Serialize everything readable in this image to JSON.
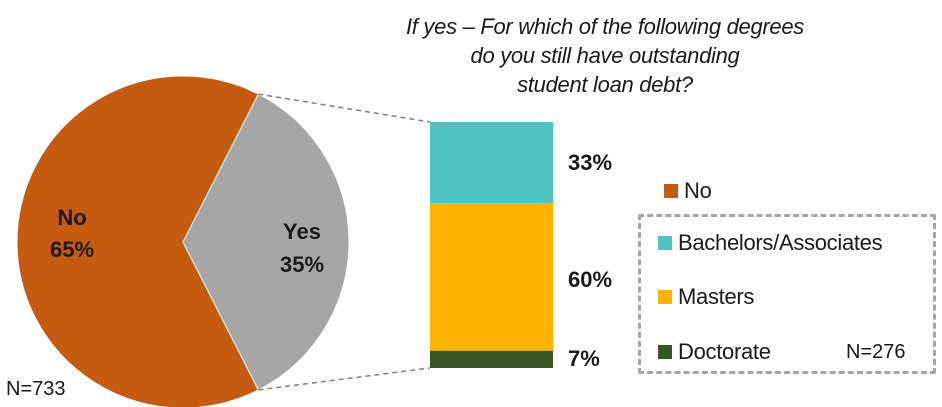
{
  "chart_data": [
    {
      "type": "pie",
      "labels": [
        "No",
        "Yes"
      ],
      "values": [
        65,
        35
      ],
      "display": [
        "65%",
        "35%"
      ],
      "colors": [
        "#c55a11",
        "#a6a6a6"
      ],
      "n": "N=733"
    },
    {
      "type": "bar",
      "stacked": true,
      "title_lines": [
        "If yes – For which of the following degrees",
        "do you still have outstanding",
        "student loan debt?"
      ],
      "series": [
        {
          "name": "Bachelors/Associates",
          "value": 33,
          "display": "33%",
          "color": "#4ec3c0"
        },
        {
          "name": "Masters",
          "value": 60,
          "display": "60%",
          "color": "#ffb300"
        },
        {
          "name": "Doctorate",
          "value": 7,
          "display": "7%",
          "color": "#375623"
        }
      ],
      "n": "N=276"
    }
  ],
  "legend": {
    "items": [
      {
        "name": "No",
        "color": "#c55a11"
      },
      {
        "name": "Bachelors/Associates",
        "color": "#4ec3c0"
      },
      {
        "name": "Masters",
        "color": "#ffb300"
      },
      {
        "name": "Doctorate",
        "color": "#375623"
      }
    ]
  }
}
